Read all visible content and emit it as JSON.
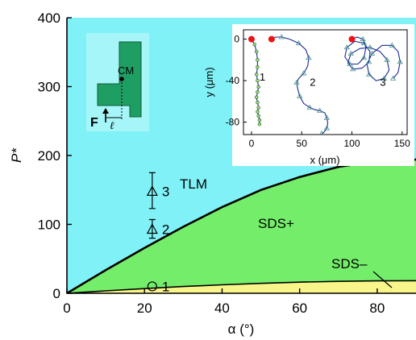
{
  "chart_data": {
    "type": "area",
    "xlabel": "α (°)",
    "ylabel": "P*",
    "xlim": [
      0,
      90
    ],
    "ylim": [
      0,
      400
    ],
    "xticks": [
      "0",
      "20",
      "40",
      "60",
      "80"
    ],
    "yticks": [
      "0",
      "100",
      "200",
      "300",
      "400"
    ],
    "regions": [
      {
        "label": "TLM",
        "color": "#80F2F7"
      },
      {
        "label": "SDS+",
        "color": "#74EE6A"
      },
      {
        "label": "SDS–",
        "color": "#F9F58A"
      }
    ],
    "boundaries": [
      {
        "name": "TLM/SDS+",
        "x": [
          0,
          10,
          20,
          30,
          40,
          50,
          60,
          70,
          80,
          90
        ],
        "y": [
          0,
          33.6,
          65.7,
          96.5,
          125,
          149.9,
          168.8,
          183.5,
          191.9,
          194
        ]
      },
      {
        "name": "SDS+/SDS–",
        "x": [
          0,
          10,
          20,
          30,
          40,
          50,
          60,
          70,
          80,
          90
        ],
        "y": [
          0,
          3.5,
          6.8,
          9.8,
          12.3,
          14.4,
          16.1,
          17.3,
          18,
          18.2
        ]
      }
    ],
    "points": [
      {
        "label": "1",
        "marker": "circle",
        "x": 22,
        "y": 10,
        "err": null
      },
      {
        "label": "2",
        "marker": "triangle",
        "x": 22,
        "y": 93,
        "err": [
          80,
          107
        ]
      },
      {
        "label": "3",
        "marker": "triangle",
        "x": 22,
        "y": 148,
        "err": [
          123,
          175
        ]
      }
    ],
    "diagram": {
      "cm_label": "CM",
      "force_label": "F",
      "length_symbol": "ℓ"
    },
    "inset": {
      "type": "line",
      "xlabel": "x (μm)",
      "ylabel": "y (μm)",
      "xlim": [
        -8,
        155
      ],
      "ylim": [
        -92,
        9
      ],
      "xticks": [
        "0",
        "50",
        "100",
        "150"
      ],
      "yticks": [
        "0",
        "-40",
        "-80"
      ],
      "trajectories": [
        {
          "label": "1",
          "start": [
            0,
            0
          ],
          "x": [
            0,
            3,
            5,
            6,
            6,
            5,
            6,
            7,
            6,
            5,
            6,
            7,
            6,
            7,
            8,
            8
          ],
          "y": [
            0,
            -5,
            -12,
            -20,
            -27,
            -34,
            -40,
            -46,
            -51,
            -56,
            -61,
            -66,
            -70,
            -74,
            -78,
            -82
          ]
        },
        {
          "label": "2",
          "start": [
            20,
            0
          ],
          "x": [
            20,
            24,
            30,
            38,
            47,
            54,
            57,
            56,
            52,
            47,
            45,
            46,
            48,
            52,
            58,
            63,
            68,
            73,
            75,
            76,
            75,
            72,
            70
          ],
          "y": [
            0,
            2,
            2,
            0,
            -4,
            -10,
            -18,
            -26,
            -33,
            -38,
            -42,
            -48,
            -55,
            -62,
            -66,
            -68,
            -69,
            -71,
            -76,
            -81,
            -86,
            -90,
            -91
          ]
        },
        {
          "label": "3",
          "start": [
            100,
            0
          ],
          "x": [
            100,
            105,
            111,
            114,
            112,
            106,
            98,
            93,
            95,
            103,
            112,
            118,
            117,
            110,
            101,
            96,
            99,
            108,
            118,
            128,
            135,
            137,
            132,
            124,
            117,
            115,
            120,
            130,
            140,
            146,
            148,
            146,
            141
          ],
          "y": [
            0,
            2,
            0,
            -8,
            -18,
            -24,
            -24,
            -17,
            -8,
            -2,
            -4,
            -12,
            -22,
            -28,
            -29,
            -23,
            -14,
            -9,
            -8,
            -12,
            -20,
            -30,
            -38,
            -40,
            -34,
            -24,
            -14,
            -6,
            -6,
            -12,
            -22,
            -32,
            -38
          ]
        }
      ]
    }
  }
}
